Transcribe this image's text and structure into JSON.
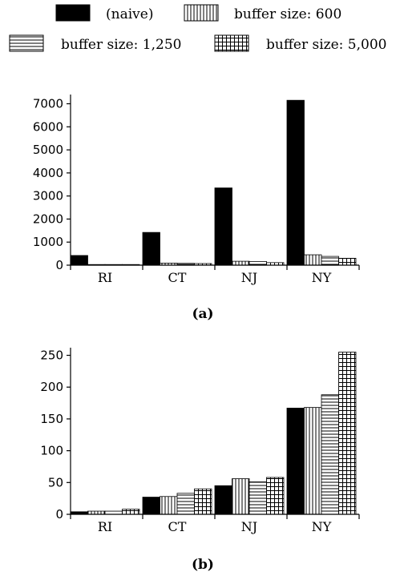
{
  "legend": [
    {
      "name": "(naive)",
      "pattern": "solid"
    },
    {
      "name": "buffer size: 600",
      "pattern": "vertical"
    },
    {
      "name": "buffer size: 1,250",
      "pattern": "horizontal"
    },
    {
      "name": "buffer size: 5,000",
      "pattern": "grid"
    }
  ],
  "chart_data": [
    {
      "type": "bar",
      "caption": "(a)",
      "categories": [
        "RI",
        "CT",
        "NJ",
        "NY"
      ],
      "series": [
        {
          "name": "(naive)",
          "values": [
            420,
            1420,
            3350,
            7150
          ]
        },
        {
          "name": "buffer size: 600",
          "values": [
            20,
            90,
            170,
            450
          ]
        },
        {
          "name": "buffer size: 1,250",
          "values": [
            15,
            80,
            160,
            380
          ]
        },
        {
          "name": "buffer size: 5,000",
          "values": [
            10,
            70,
            110,
            300
          ]
        }
      ],
      "yticks": [
        0,
        1000,
        2000,
        3000,
        4000,
        5000,
        6000,
        7000
      ],
      "ylim": [
        0,
        7400
      ],
      "xlabel": "",
      "ylabel": "",
      "grid": false
    },
    {
      "type": "bar",
      "caption": "(b)",
      "categories": [
        "RI",
        "CT",
        "NJ",
        "NY"
      ],
      "series": [
        {
          "name": "(naive)",
          "values": [
            4,
            27,
            45,
            167
          ]
        },
        {
          "name": "buffer size: 600",
          "values": [
            5,
            28,
            56,
            168
          ]
        },
        {
          "name": "buffer size: 1,250",
          "values": [
            5,
            33,
            51,
            188
          ]
        },
        {
          "name": "buffer size: 5,000",
          "values": [
            8,
            40,
            58,
            255
          ]
        }
      ],
      "yticks": [
        0,
        50,
        100,
        150,
        200,
        250
      ],
      "ylim": [
        0,
        262
      ],
      "xlabel": "",
      "ylabel": "",
      "grid": false
    }
  ],
  "colors": {
    "ink": "#000000",
    "paper": "#ffffff"
  }
}
